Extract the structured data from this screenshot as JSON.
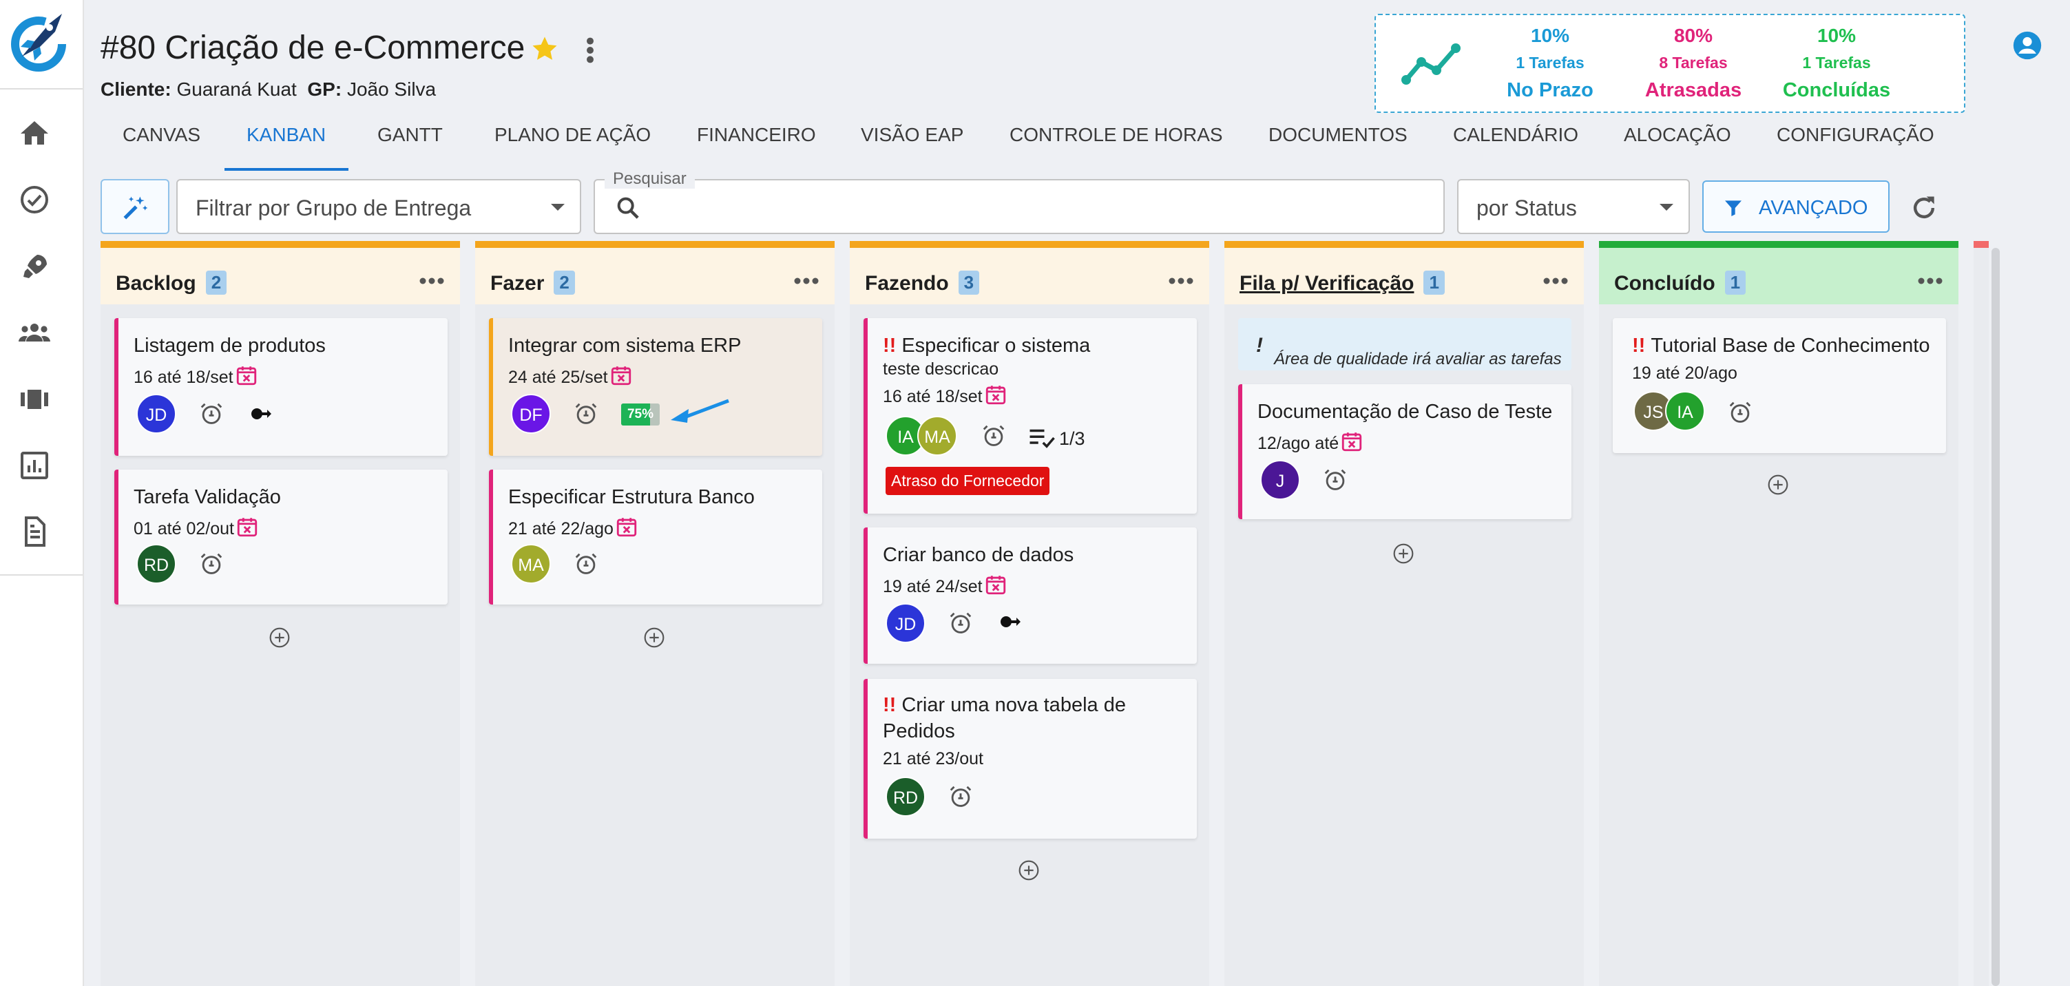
{
  "project": {
    "title": "#80 Criação de e-Commerce",
    "client_label": "Cliente:",
    "client": "Guaraná Kuat",
    "gp_label": "GP:",
    "gp": "João Silva"
  },
  "stats": [
    {
      "pct": "10%",
      "count": "1 Tarefas",
      "label": "No Prazo",
      "color": "#1a9ad6"
    },
    {
      "pct": "80%",
      "count": "8 Tarefas",
      "label": "Atrasadas",
      "color": "#e0237a"
    },
    {
      "pct": "10%",
      "count": "1 Tarefas",
      "label": "Concluídas",
      "color": "#1fbf4f"
    }
  ],
  "tabs": [
    "CANVAS",
    "KANBAN",
    "GANTT",
    "PLANO DE AÇÃO",
    "FINANCEIRO",
    "VISÃO EAP",
    "CONTROLE DE HORAS",
    "DOCUMENTOS",
    "CALENDÁRIO",
    "ALOCAÇÃO",
    "CONFIGURAÇÃO"
  ],
  "active_tab": "KANBAN",
  "filters": {
    "group_placeholder": "Filtrar por Grupo de Entrega",
    "search_label": "Pesquisar",
    "search_value": "",
    "status_value": "por Status",
    "advanced_label": "AVANÇADO"
  },
  "columns": [
    {
      "title": "Backlog",
      "count": "2",
      "accent": "#f4a51c",
      "head_bg": "#fdf4e4",
      "cards": [
        {
          "title": "Listagem de produtos",
          "sub": "16 até 18/set",
          "avatars": [
            {
              "initials": "JD",
              "color": "#2b35d8"
            }
          ]
        },
        {
          "title": "Tarefa Validação",
          "sub": "01 até 02/out",
          "avatars": [
            {
              "initials": "RD",
              "color": "#1b5e2a"
            }
          ]
        }
      ]
    },
    {
      "title": "Fazer",
      "count": "2",
      "accent": "#f4a51c",
      "head_bg": "#fdf4e4",
      "cards": [
        {
          "title": "Integrar com sistema ERP",
          "sub": "24 até 25/set",
          "avatars": [
            {
              "initials": "DF",
              "color": "#6a16e6"
            }
          ],
          "progress": "75%",
          "progress_value": 0.75
        },
        {
          "title": "Especificar Estrutura Banco",
          "sub": "21 até 22/ago",
          "avatars": [
            {
              "initials": "MA",
              "color": "#a2ab2c"
            }
          ]
        }
      ]
    },
    {
      "title": "Fazendo",
      "count": "3",
      "accent": "#f4a51c",
      "head_bg": "#fdf4e4",
      "cards": [
        {
          "title": "Especificar o sistema",
          "description": "teste descricao",
          "sub": "16 até 18/set",
          "avatars": [
            {
              "initials": "IA",
              "color": "#23a12d"
            },
            {
              "initials": "MA",
              "color": "#a2ab2c"
            }
          ],
          "checklist": "1/3",
          "tag": "Atraso do Fornecedor"
        },
        {
          "title": "Criar banco de dados",
          "sub": "19 até 24/set",
          "avatars": [
            {
              "initials": "JD",
              "color": "#2b35d8"
            }
          ]
        },
        {
          "title_line1": "Criar uma nova tabela de",
          "title_line2": "Pedidos",
          "sub": "21 até 23/out",
          "avatars": [
            {
              "initials": "RD",
              "color": "#1b5e2a"
            }
          ]
        }
      ]
    },
    {
      "title": "Fila p/ Verificação",
      "count": "1",
      "accent": "#f4a51c",
      "head_bg": "#fdf4e4",
      "note": "Área de qualidade irá avaliar as tarefas",
      "cards": [
        {
          "title": "Documentação de Caso de Teste",
          "sub": "12/ago até",
          "avatars": [
            {
              "initials": "J",
              "color": "#4b1796"
            }
          ]
        }
      ]
    },
    {
      "title": "Concluído",
      "count": "1",
      "accent": "#22ac3a",
      "head_bg": "#c6f0cd",
      "cards": [
        {
          "title": "Tutorial Base de Conhecimento",
          "sub": "19 até 20/ago",
          "avatars": [
            {
              "initials": "JS",
              "color": "#6e6a45"
            },
            {
              "initials": "IA",
              "color": "#23a12d"
            }
          ]
        }
      ]
    }
  ]
}
